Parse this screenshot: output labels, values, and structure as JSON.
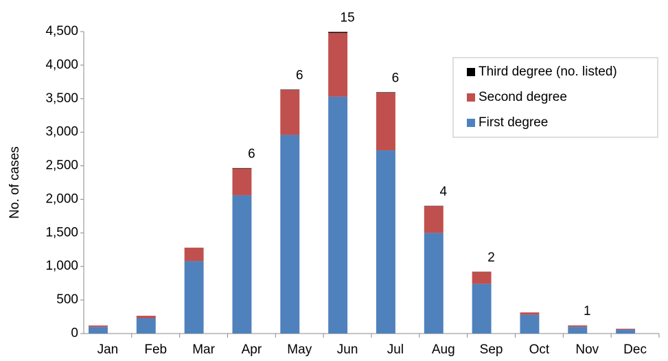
{
  "chart_data": {
    "type": "stacked_bar",
    "y_label": "No. of cases",
    "categories": [
      "Jan",
      "Feb",
      "Mar",
      "Apr",
      "May",
      "Jun",
      "Jul",
      "Aug",
      "Sep",
      "Oct",
      "Nov",
      "Dec"
    ],
    "series": [
      {
        "name": "First degree",
        "color": "#4f81bd",
        "values": [
          100,
          230,
          1080,
          2060,
          2960,
          3530,
          2730,
          1500,
          740,
          280,
          100,
          60
        ]
      },
      {
        "name": "Second degree",
        "color": "#c0504d",
        "values": [
          20,
          35,
          200,
          400,
          670,
          950,
          860,
          400,
          180,
          35,
          20,
          12
        ]
      },
      {
        "name": "Third degree (no. listed)",
        "color": "#000000",
        "values": [
          null,
          null,
          null,
          6,
          6,
          15,
          6,
          4,
          2,
          null,
          1,
          null
        ]
      }
    ],
    "ylim": [
      0,
      4500
    ],
    "yticks": [
      0,
      500,
      {
        "value": 1000,
        "label": "1,000"
      },
      {
        "value": 1500,
        "label": "1,500"
      },
      {
        "value": 2000,
        "label": "2,000"
      },
      {
        "value": 2500,
        "label": "2,500"
      },
      {
        "value": 3000,
        "label": "3,000"
      },
      {
        "value": 3500,
        "label": "3,500"
      },
      {
        "value": 4000,
        "label": "4,000"
      },
      {
        "value": 4500,
        "label": "4,500"
      }
    ],
    "legend": "top-right"
  }
}
